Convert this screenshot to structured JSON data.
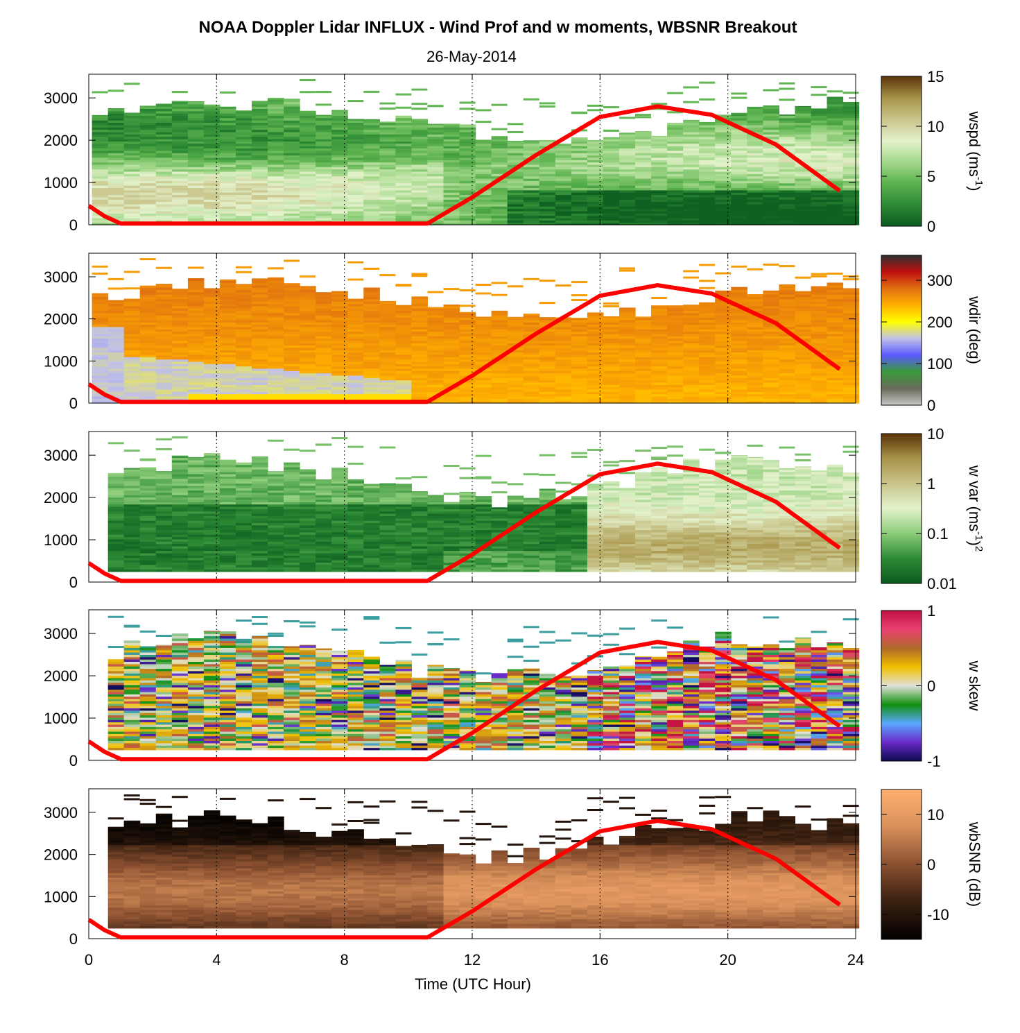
{
  "figure": {
    "title": "NOAA Doppler Lidar INFLUX - Wind Prof and w moments, WBSNR Breakout",
    "subtitle": "26-May-2014",
    "xlabel": "Time (UTC Hour)"
  },
  "chart_data": [
    {
      "type": "heatmap",
      "x_range": [
        0,
        24
      ],
      "y_range": [
        0,
        3500
      ],
      "x_ticks": [
        "0",
        "4",
        "8",
        "12",
        "16",
        "20",
        "24"
      ],
      "y_ticks": [
        "0",
        "1000",
        "2000",
        "3000"
      ],
      "colorbar": {
        "label_pre": "wspd (ms",
        "label_sup": "-1",
        "label_post": ")",
        "ticks": [
          "15",
          "10",
          "5",
          "0"
        ],
        "range": [
          0,
          15
        ]
      },
      "colors": [
        "#0a5a1e",
        "#2c8a34",
        "#5cb24e",
        "#a4d88c",
        "#e4f2cc",
        "#c8c48a",
        "#a89448",
        "#5a3208"
      ]
    },
    {
      "type": "heatmap",
      "x_range": [
        0,
        24
      ],
      "y_range": [
        0,
        3500
      ],
      "x_ticks": [
        "0",
        "4",
        "8",
        "12",
        "16",
        "20",
        "24"
      ],
      "y_ticks": [
        "0",
        "1000",
        "2000",
        "3000"
      ],
      "colorbar": {
        "label_pre": "wdir (deg)",
        "label_sup": "",
        "label_post": "",
        "ticks": [
          "300",
          "200",
          "100",
          "0"
        ],
        "range": [
          0,
          360
        ]
      },
      "colors": [
        "#c8c8c8",
        "#6a6a5a",
        "#3a9a3a",
        "#5a5aff",
        "#c0c0e8",
        "#ffff00",
        "#ffb000",
        "#e07010",
        "#c01010",
        "#303030"
      ]
    },
    {
      "type": "heatmap",
      "x_range": [
        0,
        24
      ],
      "y_range": [
        0,
        3500
      ],
      "x_ticks": [
        "0",
        "4",
        "8",
        "12",
        "16",
        "20",
        "24"
      ],
      "y_ticks": [
        "0",
        "1000",
        "2000",
        "3000"
      ],
      "colorbar": {
        "label_pre": "w var (ms",
        "label_sup": "-1",
        "label_post": ")",
        "label_sup2": "2",
        "ticks": [
          "10",
          "1",
          "0.1",
          "0.01"
        ],
        "range": [
          0.01,
          10
        ],
        "log_scale": true
      },
      "colors": [
        "#0a5a1e",
        "#2c8a34",
        "#8ccc78",
        "#e4f2cc",
        "#c8c48a",
        "#a89448",
        "#5a3208"
      ]
    },
    {
      "type": "heatmap",
      "x_range": [
        0,
        24
      ],
      "y_range": [
        0,
        3500
      ],
      "x_ticks": [
        "0",
        "4",
        "8",
        "12",
        "16",
        "20",
        "24"
      ],
      "y_ticks": [
        "0",
        "1000",
        "2000",
        "3000"
      ],
      "colorbar": {
        "label_pre": "w skew",
        "label_sup": "",
        "label_post": "",
        "ticks": [
          "1",
          "0",
          "-1"
        ],
        "range": [
          -1,
          1
        ]
      },
      "colors": [
        "#0a0a50",
        "#6a2ac8",
        "#5aa8ff",
        "#109010",
        "#e0e0d8",
        "#f0c000",
        "#b06a2a",
        "#e84070",
        "#c01040"
      ]
    },
    {
      "type": "heatmap",
      "x_range": [
        0,
        24
      ],
      "y_range": [
        0,
        3500
      ],
      "x_ticks": [
        "0",
        "4",
        "8",
        "12",
        "16",
        "20",
        "24"
      ],
      "y_ticks": [
        "0",
        "1000",
        "2000",
        "3000"
      ],
      "colorbar": {
        "label_pre": "wbSNR (dB)",
        "label_sup": "",
        "label_post": "",
        "ticks": [
          "10",
          "0",
          "-10"
        ],
        "range": [
          -15,
          15
        ]
      },
      "colors": [
        "#000000",
        "#3a2010",
        "#8a5030",
        "#d8905a",
        "#ffb070"
      ]
    }
  ],
  "overlay": {
    "color": "#ff0000",
    "points": [
      [
        0,
        450
      ],
      [
        0.5,
        200
      ],
      [
        1,
        30
      ],
      [
        10.6,
        30
      ],
      [
        12,
        650
      ],
      [
        14,
        1650
      ],
      [
        16,
        2550
      ],
      [
        17.8,
        2800
      ],
      [
        19.5,
        2600
      ],
      [
        21.5,
        1900
      ],
      [
        23.6,
        750
      ]
    ]
  }
}
